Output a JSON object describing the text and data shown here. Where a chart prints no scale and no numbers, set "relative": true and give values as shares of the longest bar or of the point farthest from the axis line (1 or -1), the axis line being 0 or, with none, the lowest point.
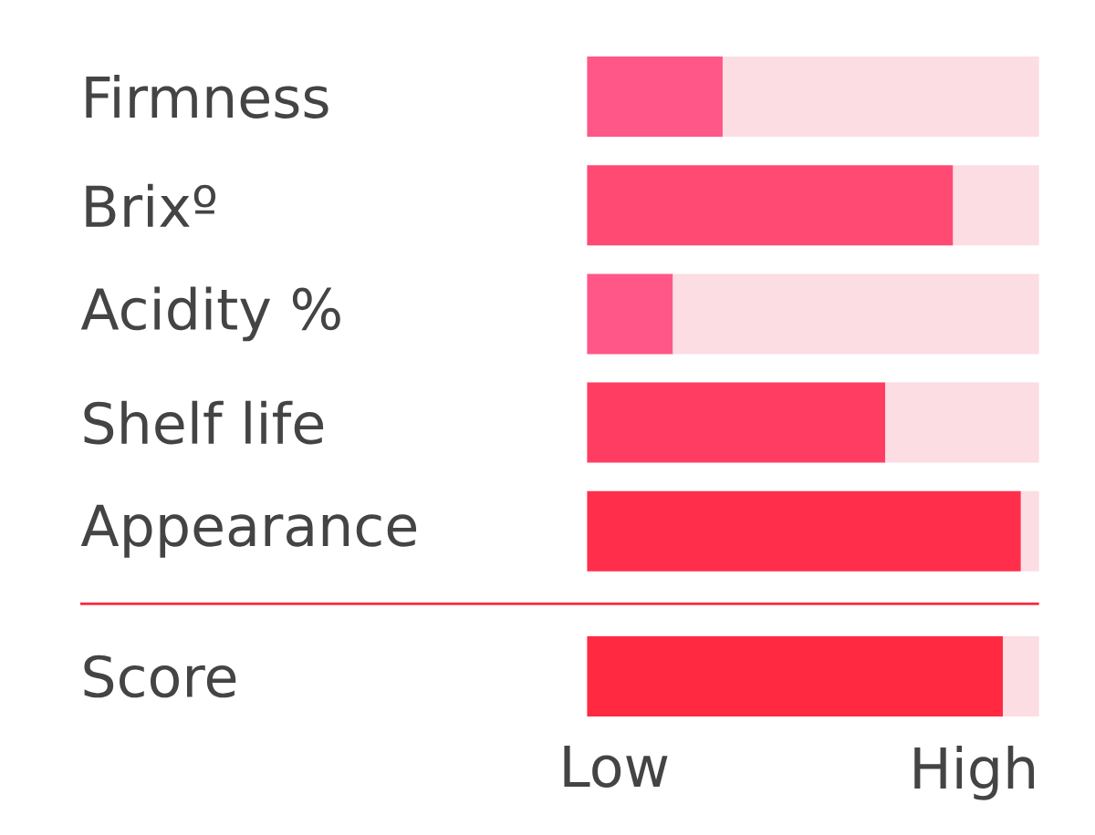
{
  "chart_data": [
    {
      "type": "bar",
      "orientation": "horizontal",
      "stacked": true,
      "relative": true,
      "categories": [
        "Firmness",
        "Brixº",
        "Acidity %",
        "Shelf life",
        "Appearance"
      ],
      "series": [
        {
          "colors": [
            "#ff5787",
            "#ff4a74",
            "#ff5787",
            "#ff3d62",
            "#ff2f4c"
          ],
          "values": [
            0.3,
            0.81,
            0.19,
            0.66,
            0.96
          ]
        },
        {
          "color": "#fcdde3",
          "values": [
            0.7,
            0.19,
            0.81,
            0.34,
            0.04
          ]
        }
      ]
    },
    {
      "type": "bar",
      "orientation": "horizontal",
      "stacked": true,
      "relative": true,
      "categories": [
        "Score"
      ],
      "series": [
        {
          "color": "#ff2a42",
          "values": [
            0.92
          ]
        },
        {
          "color": "#fcdde3",
          "values": [
            0.08
          ]
        }
      ],
      "annotations": [
        "Low",
        "High"
      ]
    }
  ]
}
